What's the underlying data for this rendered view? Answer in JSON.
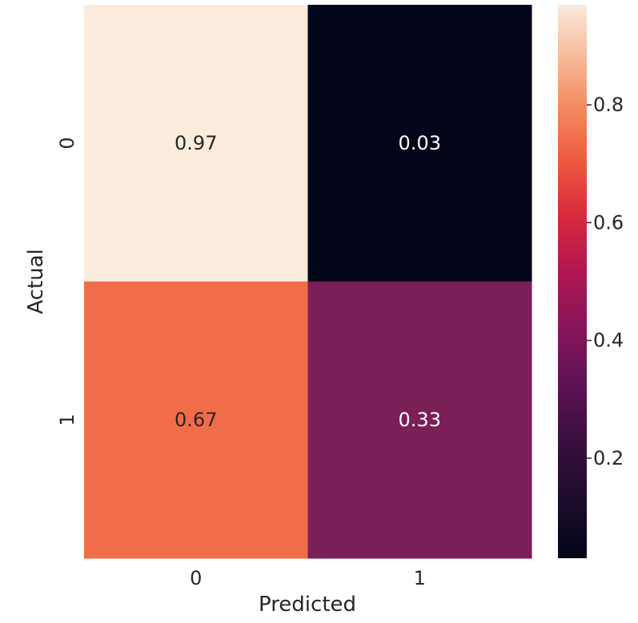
{
  "chart_data": {
    "type": "heatmap",
    "xlabel": "Predicted",
    "ylabel": "Actual",
    "x_categories": [
      "0",
      "1"
    ],
    "y_categories": [
      "0",
      "1"
    ],
    "values": [
      [
        0.97,
        0.03
      ],
      [
        0.67,
        0.33
      ]
    ],
    "value_labels": [
      [
        "0.97",
        "0.03"
      ],
      [
        "0.67",
        "0.33"
      ]
    ],
    "colormap": "rocket",
    "colorbar": {
      "range": [
        0.03,
        0.97
      ],
      "ticks": [
        0.2,
        0.4,
        0.6,
        0.8
      ],
      "tick_labels": [
        "0.2",
        "0.4",
        "0.6",
        "0.8"
      ]
    },
    "colors": {
      "cell_0_0": "#FAEBDD",
      "cell_0_1": "#03051A",
      "cell_1_0": "#F16C49",
      "cell_1_1": "#7A1F57"
    },
    "grid": false,
    "legend": "colorbar-right"
  }
}
